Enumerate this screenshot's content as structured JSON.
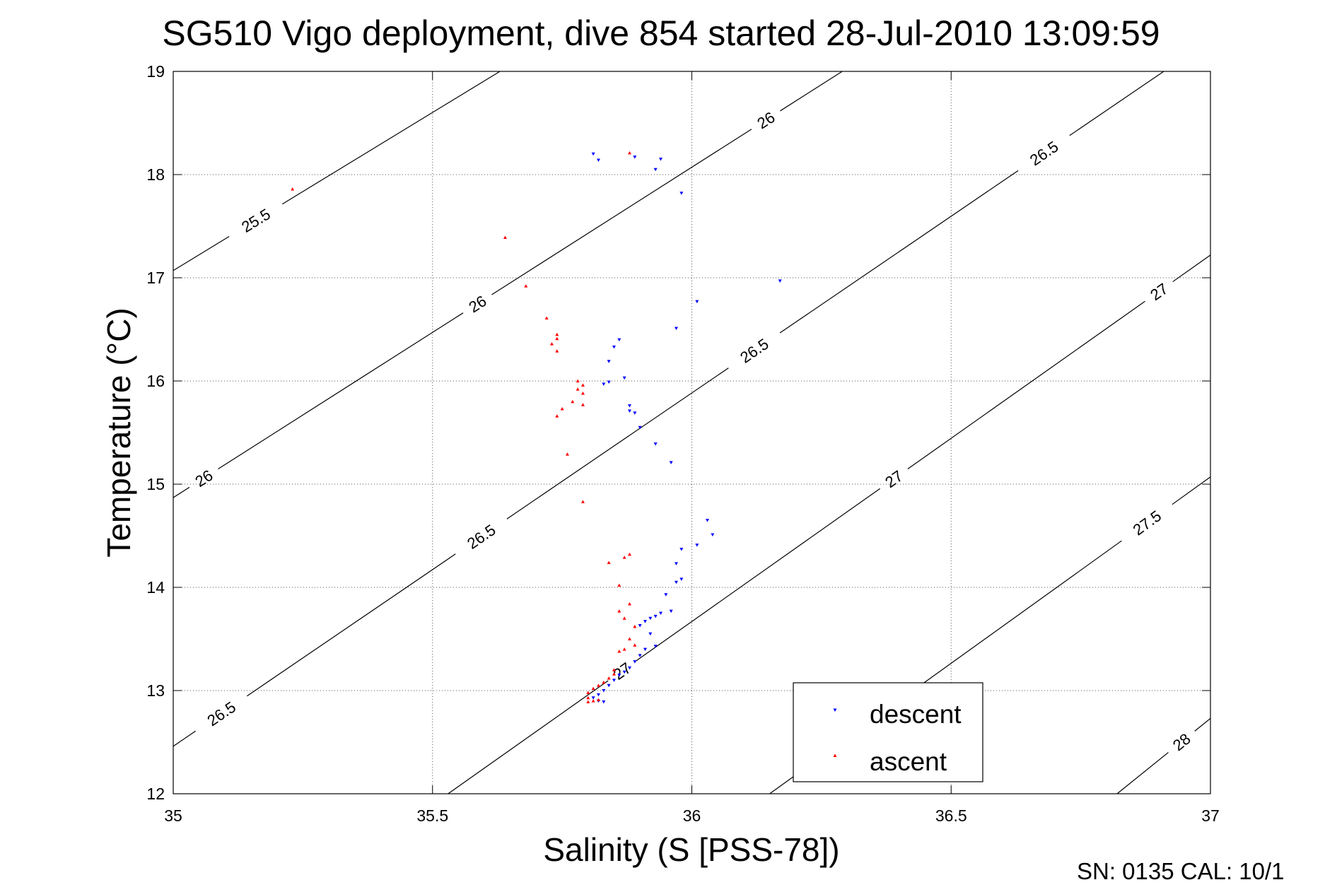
{
  "chart_data": {
    "type": "scatter",
    "title": "SG510 Vigo deployment, dive 854 started 28-Jul-2010 13:09:59",
    "xlabel": "Salinity (S [PSS-78])",
    "ylabel": "Temperature (°C)",
    "xlim": [
      35,
      37
    ],
    "ylim": [
      12,
      19
    ],
    "xticks": [
      35,
      35.5,
      36,
      36.5,
      37
    ],
    "yticks": [
      12,
      13,
      14,
      15,
      16,
      17,
      18,
      19
    ],
    "xtick_labels": [
      "35",
      "35.5",
      "36",
      "36.5",
      "37"
    ],
    "ytick_labels": [
      "12",
      "13",
      "14",
      "15",
      "16",
      "17",
      "18",
      "19"
    ],
    "grid": true,
    "legend_position": "bottom-right",
    "footer": "SN: 0135  CAL: 10/1",
    "contour_lines": [
      {
        "name": "25.5",
        "points": [
          [
            35,
            17.07
          ],
          [
            35.63,
            19
          ]
        ],
        "labels": [
          [
            35.16,
            17.55
          ]
        ]
      },
      {
        "name": "26",
        "points": [
          [
            35,
            14.87
          ],
          [
            36.29,
            19
          ]
        ],
        "labels": [
          [
            35.06,
            15.05
          ],
          [
            35.58,
            16.8
          ],
          [
            36.14,
            18.55
          ]
        ]
      },
      {
        "name": "26.5",
        "points": [
          [
            35,
            12.46
          ],
          [
            36.91,
            19
          ]
        ],
        "labels": [
          [
            35.11,
            12.65
          ],
          [
            35.62,
            14.3
          ],
          [
            36.14,
            16.15
          ],
          [
            36.68,
            18.2
          ]
        ]
      },
      {
        "name": "27",
        "points": [
          [
            35.53,
            12
          ],
          [
            37,
            17.22
          ]
        ],
        "labels": [
          [
            35.85,
            13.3
          ],
          [
            36.38,
            15.12
          ],
          [
            36.91,
            16.8
          ]
        ]
      },
      {
        "name": "27.5",
        "points": [
          [
            36.15,
            12
          ],
          [
            37,
            15.07
          ]
        ],
        "labels": [
          [
            36.87,
            14.68
          ]
        ]
      },
      {
        "name": "28",
        "points": [
          [
            36.82,
            12
          ],
          [
            37,
            12.73
          ]
        ],
        "labels": [
          [
            36.94,
            12.53
          ]
        ]
      }
    ],
    "series": [
      {
        "name": "descent",
        "color": "#0000ff",
        "marker": "triangle-down",
        "points": [
          [
            35.81,
            18.2
          ],
          [
            35.82,
            18.14
          ],
          [
            35.89,
            18.17
          ],
          [
            35.94,
            18.15
          ],
          [
            35.93,
            18.05
          ],
          [
            35.98,
            17.82
          ],
          [
            36.17,
            16.97
          ],
          [
            36.01,
            16.77
          ],
          [
            35.97,
            16.51
          ],
          [
            35.86,
            16.4
          ],
          [
            35.85,
            16.33
          ],
          [
            35.84,
            16.19
          ],
          [
            35.87,
            16.03
          ],
          [
            35.84,
            15.99
          ],
          [
            35.83,
            15.97
          ],
          [
            35.88,
            15.76
          ],
          [
            35.88,
            15.71
          ],
          [
            35.89,
            15.69
          ],
          [
            35.9,
            15.55
          ],
          [
            35.93,
            15.39
          ],
          [
            35.96,
            15.21
          ],
          [
            36.03,
            14.65
          ],
          [
            36.04,
            14.51
          ],
          [
            36.01,
            14.41
          ],
          [
            35.98,
            14.37
          ],
          [
            35.97,
            14.23
          ],
          [
            35.98,
            14.08
          ],
          [
            35.97,
            14.05
          ],
          [
            35.95,
            13.93
          ],
          [
            35.96,
            13.77
          ],
          [
            35.94,
            13.75
          ],
          [
            35.93,
            13.72
          ],
          [
            35.92,
            13.7
          ],
          [
            35.91,
            13.67
          ],
          [
            35.9,
            13.63
          ],
          [
            35.92,
            13.55
          ],
          [
            35.93,
            13.43
          ],
          [
            35.91,
            13.4
          ],
          [
            35.9,
            13.34
          ],
          [
            35.89,
            13.28
          ],
          [
            35.88,
            13.22
          ],
          [
            35.87,
            13.18
          ],
          [
            35.86,
            13.15
          ],
          [
            35.85,
            13.1
          ],
          [
            35.84,
            13.05
          ],
          [
            35.83,
            13.0
          ],
          [
            35.82,
            12.96
          ],
          [
            35.81,
            12.93
          ],
          [
            35.82,
            12.9
          ],
          [
            35.83,
            12.89
          ]
        ]
      },
      {
        "name": "ascent",
        "color": "#ff0000",
        "marker": "triangle-up",
        "points": [
          [
            35.23,
            17.86
          ],
          [
            35.88,
            18.21
          ],
          [
            35.64,
            17.39
          ],
          [
            35.68,
            16.92
          ],
          [
            35.72,
            16.61
          ],
          [
            35.74,
            16.45
          ],
          [
            35.74,
            16.41
          ],
          [
            35.73,
            16.36
          ],
          [
            35.74,
            16.29
          ],
          [
            35.78,
            16.0
          ],
          [
            35.79,
            15.96
          ],
          [
            35.78,
            15.92
          ],
          [
            35.79,
            15.88
          ],
          [
            35.77,
            15.8
          ],
          [
            35.79,
            15.77
          ],
          [
            35.75,
            15.73
          ],
          [
            35.74,
            15.66
          ],
          [
            35.76,
            15.29
          ],
          [
            35.79,
            14.83
          ],
          [
            35.88,
            14.32
          ],
          [
            35.87,
            14.29
          ],
          [
            35.84,
            14.24
          ],
          [
            35.86,
            14.02
          ],
          [
            35.88,
            13.84
          ],
          [
            35.86,
            13.77
          ],
          [
            35.87,
            13.7
          ],
          [
            35.89,
            13.62
          ],
          [
            35.88,
            13.5
          ],
          [
            35.89,
            13.44
          ],
          [
            35.87,
            13.4
          ],
          [
            35.86,
            13.38
          ],
          [
            35.85,
            13.2
          ],
          [
            35.85,
            13.16
          ],
          [
            35.84,
            13.12
          ],
          [
            35.83,
            13.08
          ],
          [
            35.82,
            13.05
          ],
          [
            35.81,
            13.02
          ],
          [
            35.8,
            12.98
          ],
          [
            35.8,
            12.93
          ],
          [
            35.82,
            12.91
          ],
          [
            35.81,
            12.9
          ],
          [
            35.8,
            12.89
          ]
        ]
      }
    ]
  }
}
